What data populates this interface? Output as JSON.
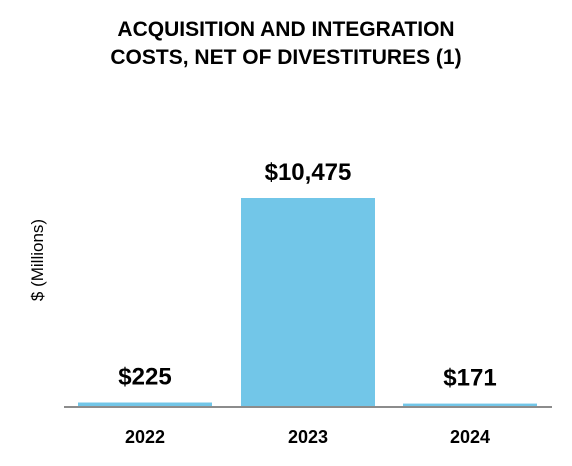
{
  "chart_data": {
    "type": "bar",
    "title_lines": [
      "ACQUISITION AND INTEGRATION",
      "COSTS, NET OF DIVESTITURES (1)"
    ],
    "categories": [
      "2022",
      "2023",
      "2024"
    ],
    "values": [
      225,
      10475,
      171
    ],
    "data_labels": [
      "$225",
      "$10,475",
      "$171"
    ],
    "ylabel": "$ (Millions)",
    "xlabel": "",
    "ylim": [
      0,
      10475
    ],
    "grid": false,
    "legend": "none",
    "bar_color": "#72C6E8",
    "baseline_color": "#8C8C8C"
  }
}
